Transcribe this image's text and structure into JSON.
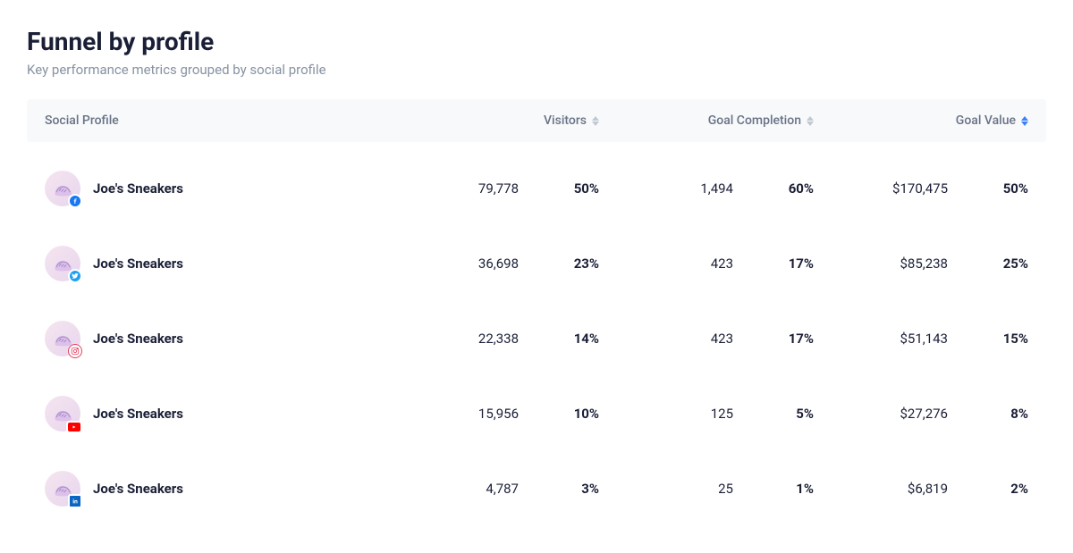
{
  "header": {
    "title": "Funnel by profile",
    "subtitle": "Key performance metrics grouped by social profile"
  },
  "table": {
    "columns": {
      "profile": "Social Profile",
      "visitors": "Visitors",
      "goal_completion": "Goal Completion",
      "goal_value": "Goal Value"
    },
    "rows": [
      {
        "profile_name": "Joe's Sneakers",
        "social": "facebook",
        "visitors": "79,778",
        "visitors_pct": "50%",
        "completion": "1,494",
        "completion_pct": "60%",
        "value": "$170,475",
        "value_pct": "50%"
      },
      {
        "profile_name": "Joe's Sneakers",
        "social": "twitter",
        "visitors": "36,698",
        "visitors_pct": "23%",
        "completion": "423",
        "completion_pct": "17%",
        "value": "$85,238",
        "value_pct": "25%"
      },
      {
        "profile_name": "Joe's Sneakers",
        "social": "instagram",
        "visitors": "22,338",
        "visitors_pct": "14%",
        "completion": "423",
        "completion_pct": "17%",
        "value": "$51,143",
        "value_pct": "15%"
      },
      {
        "profile_name": "Joe's Sneakers",
        "social": "youtube",
        "visitors": "15,956",
        "visitors_pct": "10%",
        "completion": "125",
        "completion_pct": "5%",
        "value": "$27,276",
        "value_pct": "8%"
      },
      {
        "profile_name": "Joe's Sneakers",
        "social": "linkedin",
        "visitors": "4,787",
        "visitors_pct": "3%",
        "completion": "25",
        "completion_pct": "1%",
        "value": "$6,819",
        "value_pct": "2%"
      }
    ]
  },
  "colors": {
    "sort_up": "#3b82f6",
    "sort_down": "#3b82f6",
    "sort_inactive": "#c0c8d2"
  }
}
